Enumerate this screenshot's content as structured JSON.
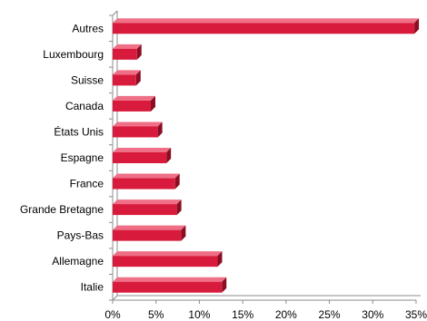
{
  "chart_data": {
    "type": "bar",
    "orientation": "horizontal",
    "style": "3d",
    "categories": [
      "Autres",
      "Luxembourg",
      "Suisse",
      "Canada",
      "États Unis",
      "Espagne",
      "France",
      "Grande Bretagne",
      "Pays-Bas",
      "Allemagne",
      "Italie"
    ],
    "values": [
      34.8,
      2.8,
      2.7,
      4.4,
      5.2,
      6.2,
      7.2,
      7.4,
      7.9,
      12.1,
      12.6
    ],
    "unit": "%",
    "xlim": [
      0,
      35
    ],
    "xticks": [
      "0%",
      "5%",
      "10%",
      "15%",
      "20%",
      "25%",
      "30%",
      "35%"
    ],
    "title": "",
    "xlabel": "",
    "ylabel": "",
    "grid": false,
    "legend": "none",
    "colors": {
      "bar_front": "#d81b3c",
      "bar_top": "#ef6f86",
      "bar_side": "#8a0d22",
      "axis": "#8c8c8c"
    }
  }
}
